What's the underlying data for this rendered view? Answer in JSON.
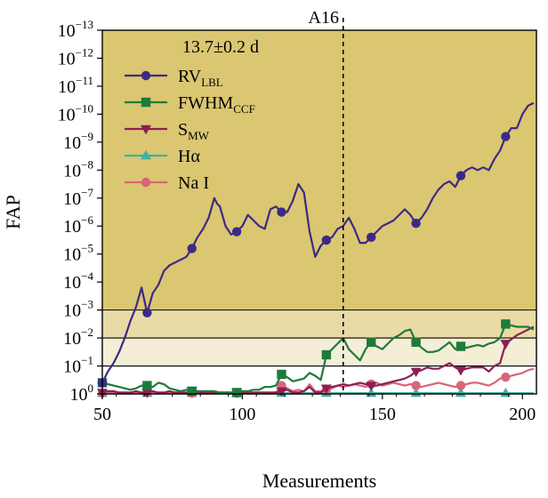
{
  "chart_data": {
    "type": "line",
    "title": "",
    "xlabel": "Measurements",
    "ylabel": "FAP",
    "xlim": [
      50,
      205
    ],
    "ylog_range": [
      0,
      -13
    ],
    "x_ticks": [
      {
        "value": 50,
        "label": "50"
      },
      {
        "value": 100,
        "label": "100"
      },
      {
        "value": 150,
        "label": "150"
      },
      {
        "value": 200,
        "label": "200"
      }
    ],
    "y_ticks": [
      {
        "exp": 0,
        "base": "10",
        "sup": "0"
      },
      {
        "exp": -1,
        "base": "10",
        "sup": "−1"
      },
      {
        "exp": -2,
        "base": "10",
        "sup": "−2"
      },
      {
        "exp": -3,
        "base": "10",
        "sup": "−3"
      },
      {
        "exp": -4,
        "base": "10",
        "sup": "−4"
      },
      {
        "exp": -5,
        "base": "10",
        "sup": "−5"
      },
      {
        "exp": -6,
        "base": "10",
        "sup": "−6"
      },
      {
        "exp": -7,
        "base": "10",
        "sup": "−7"
      },
      {
        "exp": -8,
        "base": "10",
        "sup": "−8"
      },
      {
        "exp": -9,
        "base": "10",
        "sup": "−9"
      },
      {
        "exp": -10,
        "base": "10",
        "sup": "−10"
      },
      {
        "exp": -11,
        "base": "10",
        "sup": "−11"
      },
      {
        "exp": -12,
        "base": "10",
        "sup": "−12"
      },
      {
        "exp": -13,
        "base": "10",
        "sup": "−13"
      }
    ],
    "bands": [
      {
        "from_exp": -3,
        "to_exp": -13,
        "color": "#dbc671"
      },
      {
        "from_exp": -2,
        "to_exp": -3,
        "color": "#e9dba6"
      },
      {
        "from_exp": -1,
        "to_exp": -2,
        "color": "#f4eed6"
      }
    ],
    "threshold_lines_exp": [
      -1,
      -2,
      -3
    ],
    "vline": {
      "x": 136,
      "label": "A16"
    },
    "legend_title": "13.7±0.2 d",
    "series": [
      {
        "name": "RV",
        "sub": "LBL",
        "color": "#3b2a85",
        "marker": "circle",
        "x": [
          50,
          52,
          54,
          56,
          58,
          60,
          62,
          64,
          66,
          68,
          70,
          72,
          74,
          76,
          78,
          80,
          82,
          84,
          86,
          88,
          90,
          91,
          92,
          94,
          96,
          98,
          100,
          102,
          104,
          106,
          108,
          110,
          112,
          114,
          116,
          118,
          120,
          122,
          124,
          126,
          128,
          130,
          132,
          134,
          136,
          138,
          140,
          142,
          144,
          146,
          148,
          150,
          152,
          154,
          156,
          158,
          160,
          162,
          164,
          166,
          168,
          170,
          172,
          174,
          176,
          178,
          180,
          182,
          184,
          186,
          188,
          190,
          192,
          194,
          196,
          198,
          200,
          202,
          204
        ],
        "y": [
          -0.4,
          -0.8,
          -1.1,
          -1.5,
          -2.0,
          -2.6,
          -3.1,
          -3.8,
          -2.9,
          -3.6,
          -3.9,
          -4.4,
          -4.6,
          -4.7,
          -4.8,
          -4.9,
          -5.2,
          -5.6,
          -5.9,
          -6.3,
          -7.0,
          -6.8,
          -6.7,
          -6.0,
          -5.7,
          -5.8,
          -6.0,
          -6.4,
          -6.2,
          -6.0,
          -5.9,
          -6.6,
          -6.7,
          -6.5,
          -6.5,
          -6.9,
          -7.5,
          -7.2,
          -5.8,
          -4.9,
          -5.3,
          -5.5,
          -5.6,
          -5.9,
          -6.0,
          -6.3,
          -5.9,
          -5.4,
          -5.4,
          -5.6,
          -5.8,
          -6.0,
          -6.1,
          -6.2,
          -6.4,
          -6.6,
          -6.4,
          -6.1,
          -6.3,
          -6.6,
          -7.0,
          -7.3,
          -7.5,
          -7.6,
          -7.4,
          -7.8,
          -8.0,
          -8.1,
          -8.0,
          -8.1,
          -8.0,
          -8.4,
          -8.7,
          -9.2,
          -9.5,
          -9.5,
          -10.0,
          -10.3,
          -10.4
        ],
        "marker_x": [
          50,
          66,
          82,
          98,
          114,
          130,
          146,
          162,
          178,
          194
        ]
      },
      {
        "name": "FWHM",
        "sub": "CCF",
        "color": "#1e7b3a",
        "marker": "square",
        "x": [
          50,
          52,
          54,
          56,
          58,
          60,
          62,
          64,
          66,
          68,
          70,
          72,
          74,
          76,
          78,
          80,
          82,
          84,
          86,
          88,
          90,
          92,
          94,
          96,
          98,
          100,
          102,
          104,
          106,
          108,
          110,
          112,
          114,
          116,
          118,
          120,
          122,
          124,
          126,
          128,
          130,
          132,
          134,
          136,
          138,
          140,
          142,
          144,
          146,
          148,
          150,
          152,
          154,
          156,
          158,
          160,
          162,
          164,
          166,
          168,
          170,
          172,
          174,
          176,
          178,
          180,
          182,
          184,
          186,
          188,
          190,
          192,
          194,
          196,
          198,
          200,
          202,
          204
        ],
        "y": [
          -0.4,
          -0.35,
          -0.3,
          -0.25,
          -0.2,
          -0.15,
          -0.2,
          -0.3,
          -0.3,
          -0.25,
          -0.4,
          -0.35,
          -0.2,
          -0.15,
          -0.1,
          -0.15,
          -0.1,
          -0.1,
          -0.1,
          -0.1,
          -0.1,
          -0.05,
          -0.05,
          -0.05,
          -0.05,
          -0.1,
          -0.1,
          -0.15,
          -0.15,
          -0.25,
          -0.25,
          -0.3,
          -0.7,
          -0.6,
          -0.45,
          -0.5,
          -0.55,
          -0.75,
          -0.65,
          -0.5,
          -1.4,
          -1.6,
          -1.8,
          -2.0,
          -1.6,
          -1.4,
          -1.2,
          -1.6,
          -1.85,
          -1.7,
          -1.6,
          -1.8,
          -2.0,
          -2.1,
          -2.25,
          -2.3,
          -1.85,
          -1.65,
          -1.5,
          -1.5,
          -1.55,
          -1.7,
          -1.85,
          -1.6,
          -1.7,
          -1.65,
          -1.7,
          -1.75,
          -1.7,
          -1.8,
          -1.85,
          -2.0,
          -2.5,
          -2.45,
          -2.4,
          -2.4,
          -2.4,
          -2.3
        ],
        "marker_x": [
          50,
          66,
          82,
          98,
          114,
          130,
          146,
          162,
          178,
          194
        ]
      },
      {
        "name": "S",
        "sub": "MW",
        "color": "#8c1f55",
        "marker": "triangle-down",
        "x": [
          50,
          52,
          54,
          56,
          58,
          60,
          62,
          64,
          66,
          68,
          70,
          72,
          74,
          76,
          78,
          80,
          82,
          84,
          86,
          88,
          90,
          92,
          94,
          96,
          98,
          100,
          102,
          104,
          106,
          108,
          110,
          112,
          114,
          116,
          118,
          120,
          122,
          124,
          126,
          128,
          130,
          132,
          134,
          136,
          138,
          140,
          142,
          144,
          146,
          148,
          150,
          152,
          154,
          156,
          158,
          160,
          162,
          164,
          166,
          168,
          170,
          172,
          174,
          176,
          178,
          180,
          182,
          184,
          186,
          188,
          190,
          192,
          194,
          196,
          198,
          200,
          202,
          204
        ],
        "y": [
          -0.05,
          -0.1,
          -0.1,
          -0.05,
          -0.05,
          -0.05,
          -0.1,
          -0.05,
          -0.05,
          -0.1,
          -0.05,
          -0.05,
          -0.1,
          -0.05,
          -0.05,
          -0.05,
          -0.1,
          -0.05,
          -0.05,
          -0.05,
          -0.05,
          -0.05,
          -0.05,
          -0.05,
          -0.05,
          -0.05,
          -0.05,
          -0.05,
          -0.05,
          -0.05,
          -0.05,
          -0.05,
          -0.1,
          -0.15,
          -0.05,
          -0.05,
          -0.1,
          -0.25,
          -0.05,
          -0.05,
          -0.2,
          -0.25,
          -0.3,
          -0.35,
          -0.3,
          -0.35,
          -0.4,
          -0.35,
          -0.3,
          -0.3,
          -0.35,
          -0.4,
          -0.45,
          -0.5,
          -0.55,
          -0.65,
          -0.8,
          -0.85,
          -0.95,
          -0.9,
          -0.9,
          -1.0,
          -1.1,
          -0.95,
          -0.85,
          -0.9,
          -0.95,
          -0.95,
          -0.95,
          -0.8,
          -1.0,
          -1.1,
          -1.8,
          -1.95,
          -2.1,
          -2.2,
          -2.3,
          -2.4
        ],
        "marker_x": [
          50,
          66,
          82,
          98,
          114,
          130,
          146,
          162,
          178,
          194
        ]
      },
      {
        "name": "Hα",
        "sub": "",
        "color": "#3fb2a2",
        "marker": "triangle-up",
        "x": [
          50,
          60,
          70,
          80,
          90,
          100,
          110,
          120,
          130,
          140,
          150,
          160,
          170,
          180,
          190,
          200,
          204
        ],
        "y": [
          -0.03,
          -0.03,
          -0.03,
          -0.03,
          -0.03,
          -0.03,
          -0.03,
          -0.03,
          -0.03,
          -0.03,
          -0.03,
          -0.03,
          -0.03,
          -0.03,
          -0.03,
          -0.03,
          -0.03
        ],
        "marker_x": [
          50,
          66,
          82,
          98,
          114,
          130,
          146,
          162,
          178,
          194
        ]
      },
      {
        "name": "Na I",
        "sub": "",
        "color": "#d8657a",
        "marker": "circle",
        "x": [
          50,
          52,
          54,
          56,
          58,
          60,
          62,
          64,
          66,
          68,
          70,
          72,
          74,
          76,
          78,
          80,
          82,
          84,
          86,
          88,
          90,
          92,
          94,
          96,
          98,
          100,
          102,
          104,
          106,
          108,
          110,
          112,
          114,
          116,
          118,
          120,
          122,
          124,
          126,
          128,
          130,
          132,
          134,
          136,
          138,
          140,
          142,
          144,
          146,
          148,
          150,
          152,
          154,
          156,
          158,
          160,
          162,
          164,
          166,
          168,
          170,
          172,
          174,
          176,
          178,
          180,
          182,
          184,
          186,
          188,
          190,
          192,
          194,
          196,
          198,
          200,
          202,
          204
        ],
        "y": [
          -0.03,
          -0.05,
          -0.03,
          -0.03,
          -0.03,
          -0.03,
          -0.03,
          -0.03,
          -0.05,
          -0.03,
          -0.03,
          -0.03,
          -0.03,
          -0.03,
          -0.03,
          -0.03,
          -0.03,
          -0.03,
          -0.03,
          -0.03,
          -0.03,
          -0.03,
          -0.03,
          -0.03,
          -0.03,
          -0.03,
          -0.03,
          -0.03,
          -0.03,
          -0.03,
          -0.03,
          -0.05,
          -0.3,
          -0.2,
          -0.1,
          -0.15,
          -0.1,
          -0.35,
          -0.1,
          -0.1,
          -0.15,
          -0.2,
          -0.3,
          -0.25,
          -0.3,
          -0.35,
          -0.3,
          -0.25,
          -0.35,
          -0.4,
          -0.3,
          -0.35,
          -0.4,
          -0.35,
          -0.3,
          -0.35,
          -0.3,
          -0.25,
          -0.3,
          -0.35,
          -0.4,
          -0.35,
          -0.3,
          -0.25,
          -0.3,
          -0.35,
          -0.4,
          -0.4,
          -0.35,
          -0.3,
          -0.4,
          -0.55,
          -0.6,
          -0.65,
          -0.7,
          -0.75,
          -0.85,
          -0.9
        ],
        "marker_x": [
          50,
          66,
          82,
          98,
          114,
          130,
          146,
          162,
          178,
          194
        ]
      }
    ]
  }
}
